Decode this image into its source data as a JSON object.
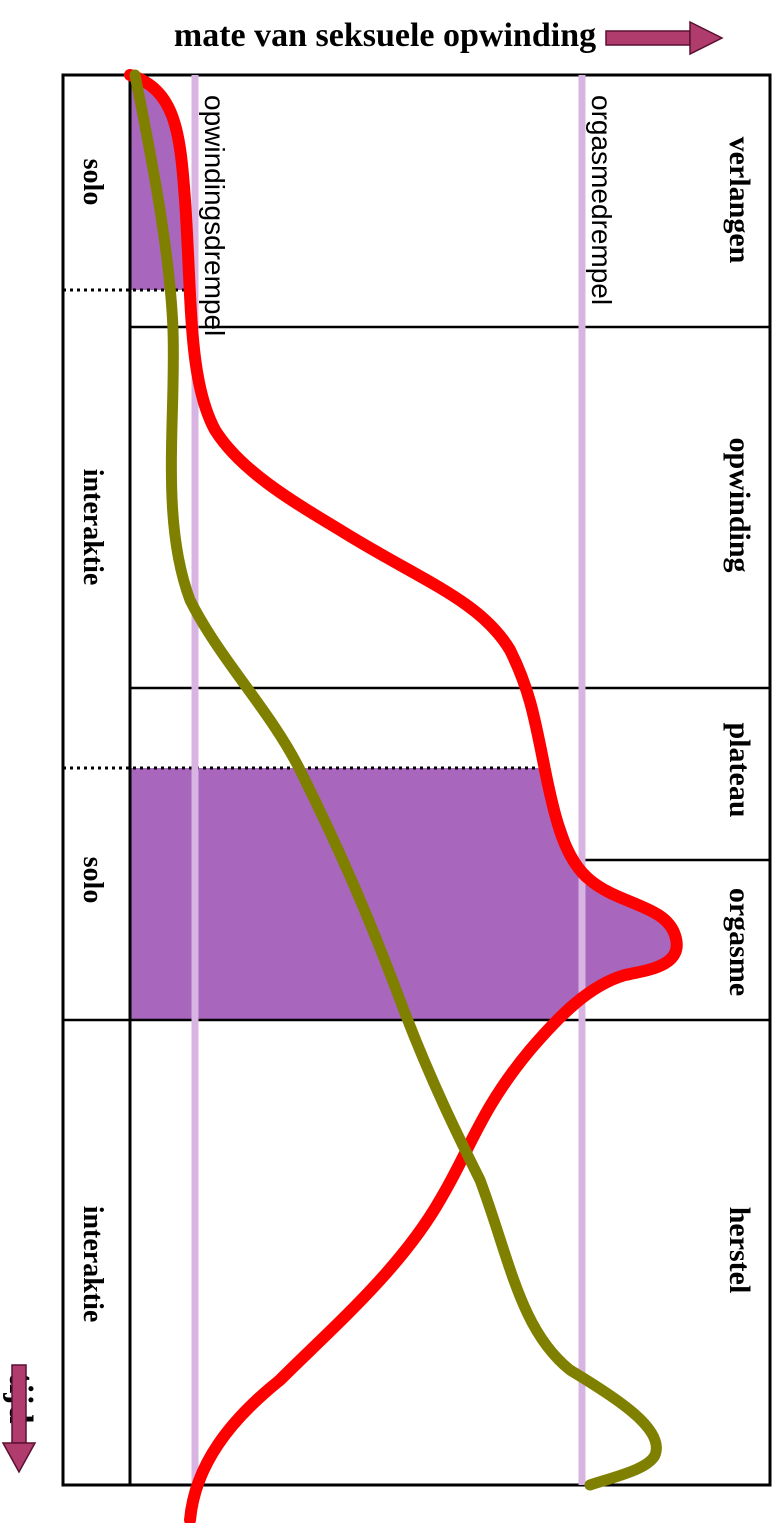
{
  "axis": {
    "x_title": "mate van seksuele opwinding",
    "y_title": "tijd"
  },
  "phases": [
    "verlangen",
    "opwinding",
    "plateau",
    "orgasme",
    "herstel"
  ],
  "activities": [
    "solo",
    "interaktie",
    "solo",
    "interaktie"
  ],
  "thresholds": {
    "arousal": "opwindingsdrempel",
    "orgasm": "orgasmedrempel"
  },
  "colors": {
    "arousal_curve": "#ff0000",
    "second_curve": "#808000",
    "solo_fill": "#a966bd",
    "threshold_line": "#d8b4e2",
    "arrow": "#b03c6e",
    "frame": "#000000"
  }
}
